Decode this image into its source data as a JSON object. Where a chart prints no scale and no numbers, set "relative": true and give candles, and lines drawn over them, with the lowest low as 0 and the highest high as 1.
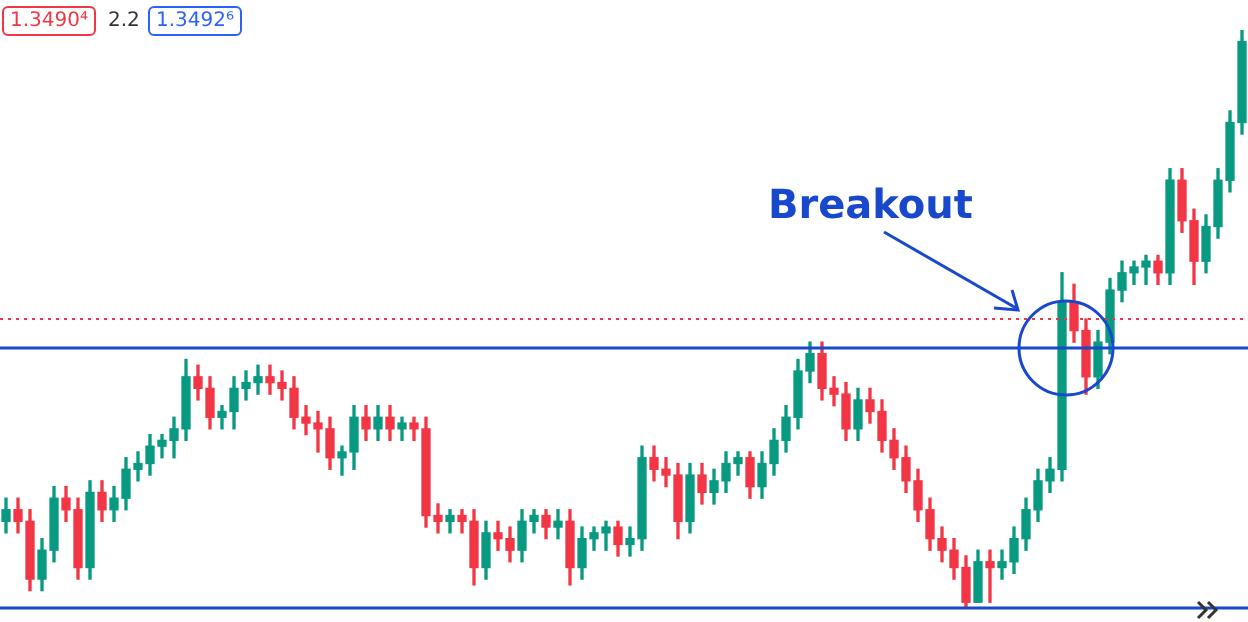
{
  "chart_data": {
    "type": "candlestick",
    "relative": true,
    "categories": [
      null,
      null,
      null,
      null,
      null,
      null,
      null,
      null,
      null,
      null,
      null,
      null,
      null,
      null,
      null,
      null,
      null,
      null,
      null,
      null,
      null,
      null,
      null,
      null,
      null,
      null,
      null,
      null,
      null,
      null,
      null,
      null,
      null,
      null,
      null,
      null,
      null,
      null,
      null,
      null,
      null,
      null,
      null,
      null,
      null,
      null,
      null,
      null,
      null,
      null,
      null,
      null,
      null,
      null,
      null,
      null,
      null,
      null,
      null,
      null,
      null,
      null,
      null,
      null,
      null,
      null,
      null,
      null,
      null,
      null,
      null,
      null,
      null,
      null,
      null,
      null,
      null,
      null,
      null,
      null,
      null,
      null,
      null,
      null,
      null,
      null,
      null,
      null,
      null,
      null,
      null,
      null,
      null,
      null,
      null,
      null,
      null,
      null,
      null,
      null,
      null,
      null,
      null,
      null
    ],
    "ohlc": [
      [
        0.15,
        0.19,
        0.13,
        0.17
      ],
      [
        0.17,
        0.19,
        0.13,
        0.15
      ],
      [
        0.15,
        0.17,
        0.03,
        0.05
      ],
      [
        0.05,
        0.12,
        0.03,
        0.1
      ],
      [
        0.1,
        0.21,
        0.08,
        0.19
      ],
      [
        0.19,
        0.21,
        0.15,
        0.17
      ],
      [
        0.17,
        0.19,
        0.05,
        0.07
      ],
      [
        0.07,
        0.22,
        0.05,
        0.2
      ],
      [
        0.2,
        0.22,
        0.15,
        0.17
      ],
      [
        0.17,
        0.21,
        0.15,
        0.19
      ],
      [
        0.19,
        0.26,
        0.17,
        0.24
      ],
      [
        0.24,
        0.27,
        0.22,
        0.25
      ],
      [
        0.25,
        0.3,
        0.23,
        0.28
      ],
      [
        0.28,
        0.3,
        0.26,
        0.29
      ],
      [
        0.29,
        0.33,
        0.26,
        0.31
      ],
      [
        0.31,
        0.43,
        0.29,
        0.4
      ],
      [
        0.4,
        0.42,
        0.36,
        0.38
      ],
      [
        0.38,
        0.4,
        0.31,
        0.33
      ],
      [
        0.33,
        0.35,
        0.31,
        0.34
      ],
      [
        0.34,
        0.4,
        0.31,
        0.38
      ],
      [
        0.38,
        0.41,
        0.36,
        0.39
      ],
      [
        0.39,
        0.42,
        0.37,
        0.4
      ],
      [
        0.4,
        0.42,
        0.37,
        0.39
      ],
      [
        0.39,
        0.41,
        0.36,
        0.38
      ],
      [
        0.38,
        0.4,
        0.31,
        0.33
      ],
      [
        0.33,
        0.35,
        0.3,
        0.32
      ],
      [
        0.32,
        0.34,
        0.27,
        0.31
      ],
      [
        0.31,
        0.33,
        0.24,
        0.26
      ],
      [
        0.26,
        0.28,
        0.23,
        0.27
      ],
      [
        0.27,
        0.35,
        0.24,
        0.33
      ],
      [
        0.33,
        0.35,
        0.29,
        0.31
      ],
      [
        0.31,
        0.35,
        0.29,
        0.33
      ],
      [
        0.33,
        0.35,
        0.29,
        0.31
      ],
      [
        0.31,
        0.33,
        0.29,
        0.32
      ],
      [
        0.32,
        0.33,
        0.29,
        0.31
      ],
      [
        0.31,
        0.33,
        0.14,
        0.16
      ],
      [
        0.16,
        0.18,
        0.13,
        0.15
      ],
      [
        0.15,
        0.17,
        0.13,
        0.16
      ],
      [
        0.16,
        0.17,
        0.13,
        0.15
      ],
      [
        0.15,
        0.17,
        0.04,
        0.07
      ],
      [
        0.07,
        0.15,
        0.05,
        0.13
      ],
      [
        0.13,
        0.15,
        0.1,
        0.12
      ],
      [
        0.12,
        0.14,
        0.08,
        0.1
      ],
      [
        0.1,
        0.17,
        0.08,
        0.15
      ],
      [
        0.15,
        0.17,
        0.13,
        0.16
      ],
      [
        0.16,
        0.17,
        0.12,
        0.14
      ],
      [
        0.14,
        0.17,
        0.12,
        0.15
      ],
      [
        0.15,
        0.17,
        0.04,
        0.07
      ],
      [
        0.07,
        0.14,
        0.05,
        0.12
      ],
      [
        0.12,
        0.14,
        0.1,
        0.13
      ],
      [
        0.13,
        0.15,
        0.1,
        0.14
      ],
      [
        0.14,
        0.15,
        0.09,
        0.11
      ],
      [
        0.11,
        0.14,
        0.09,
        0.12
      ],
      [
        0.12,
        0.28,
        0.1,
        0.26
      ],
      [
        0.26,
        0.28,
        0.22,
        0.24
      ],
      [
        0.24,
        0.26,
        0.21,
        0.23
      ],
      [
        0.23,
        0.25,
        0.12,
        0.15
      ],
      [
        0.15,
        0.25,
        0.13,
        0.23
      ],
      [
        0.23,
        0.25,
        0.18,
        0.2
      ],
      [
        0.2,
        0.24,
        0.18,
        0.22
      ],
      [
        0.22,
        0.27,
        0.2,
        0.25
      ],
      [
        0.25,
        0.27,
        0.23,
        0.26
      ],
      [
        0.26,
        0.27,
        0.19,
        0.21
      ],
      [
        0.21,
        0.27,
        0.19,
        0.25
      ],
      [
        0.25,
        0.31,
        0.23,
        0.29
      ],
      [
        0.29,
        0.35,
        0.27,
        0.33
      ],
      [
        0.33,
        0.43,
        0.31,
        0.41
      ],
      [
        0.41,
        0.46,
        0.39,
        0.44
      ],
      [
        0.44,
        0.46,
        0.36,
        0.38
      ],
      [
        0.38,
        0.4,
        0.35,
        0.37
      ],
      [
        0.37,
        0.39,
        0.29,
        0.31
      ],
      [
        0.31,
        0.38,
        0.29,
        0.36
      ],
      [
        0.36,
        0.38,
        0.32,
        0.34
      ],
      [
        0.34,
        0.36,
        0.27,
        0.29
      ],
      [
        0.29,
        0.31,
        0.24,
        0.26
      ],
      [
        0.26,
        0.28,
        0.2,
        0.22
      ],
      [
        0.22,
        0.24,
        0.15,
        0.17
      ],
      [
        0.17,
        0.19,
        0.1,
        0.12
      ],
      [
        0.12,
        0.14,
        0.08,
        0.1
      ],
      [
        0.1,
        0.12,
        0.05,
        0.07
      ],
      [
        0.07,
        0.09,
        0.0,
        0.01
      ],
      [
        0.01,
        0.1,
        0.01,
        0.08
      ],
      [
        0.08,
        0.1,
        0.01,
        0.07
      ],
      [
        0.07,
        0.1,
        0.05,
        0.08
      ],
      [
        0.08,
        0.14,
        0.06,
        0.12
      ],
      [
        0.12,
        0.19,
        0.1,
        0.17
      ],
      [
        0.17,
        0.24,
        0.15,
        0.22
      ],
      [
        0.22,
        0.26,
        0.2,
        0.24
      ],
      [
        0.24,
        0.58,
        0.22,
        0.53
      ],
      [
        0.53,
        0.56,
        0.46,
        0.48
      ],
      [
        0.48,
        0.5,
        0.37,
        0.4
      ],
      [
        0.4,
        0.48,
        0.38,
        0.46
      ],
      [
        0.46,
        0.57,
        0.44,
        0.55
      ],
      [
        0.55,
        0.6,
        0.53,
        0.58
      ],
      [
        0.58,
        0.6,
        0.56,
        0.59
      ],
      [
        0.59,
        0.61,
        0.56,
        0.6
      ],
      [
        0.6,
        0.61,
        0.56,
        0.58
      ],
      [
        0.58,
        0.76,
        0.56,
        0.74
      ],
      [
        0.74,
        0.76,
        0.65,
        0.67
      ],
      [
        0.67,
        0.69,
        0.56,
        0.6
      ],
      [
        0.6,
        0.68,
        0.58,
        0.66
      ],
      [
        0.66,
        0.76,
        0.64,
        0.74
      ],
      [
        0.74,
        0.86,
        0.72,
        0.84
      ],
      [
        0.84,
        1.0,
        0.82,
        0.98
      ]
    ],
    "colors": [
      "#089981",
      "#f23645",
      "#f23645",
      "#089981",
      "#089981",
      "#f23645",
      "#f23645",
      "#089981",
      "#f23645",
      "#089981",
      "#089981",
      "#089981",
      "#089981",
      "#089981",
      "#089981",
      "#089981",
      "#f23645",
      "#f23645",
      "#089981",
      "#089981",
      "#089981",
      "#089981",
      "#f23645",
      "#f23645",
      "#f23645",
      "#f23645",
      "#f23645",
      "#f23645",
      "#089981",
      "#089981",
      "#f23645",
      "#089981",
      "#f23645",
      "#089981",
      "#f23645",
      "#f23645",
      "#f23645",
      "#089981",
      "#f23645",
      "#f23645",
      "#089981",
      "#f23645",
      "#f23645",
      "#089981",
      "#089981",
      "#f23645",
      "#089981",
      "#f23645",
      "#089981",
      "#089981",
      "#089981",
      "#f23645",
      "#089981",
      "#089981",
      "#f23645",
      "#f23645",
      "#f23645",
      "#089981",
      "#f23645",
      "#089981",
      "#089981",
      "#089981",
      "#f23645",
      "#089981",
      "#089981",
      "#089981",
      "#089981",
      "#089981",
      "#f23645",
      "#f23645",
      "#f23645",
      "#089981",
      "#f23645",
      "#f23645",
      "#f23645",
      "#f23645",
      "#f23645",
      "#f23645",
      "#f23645",
      "#f23645",
      "#f23645",
      "#089981",
      "#f23645",
      "#089981",
      "#089981",
      "#089981",
      "#089981",
      "#089981",
      "#089981",
      "#f23645",
      "#f23645",
      "#089981",
      "#089981",
      "#089981",
      "#089981",
      "#089981",
      "#f23645",
      "#089981",
      "#f23645",
      "#f23645",
      "#089981",
      "#089981",
      "#089981",
      "#089981"
    ],
    "ref_lines": [
      {
        "axis": "y",
        "value": 0.45,
        "color": "#1848cc"
      },
      {
        "axis": "y",
        "value": 0,
        "color": "#1848cc"
      },
      {
        "axis": "y",
        "value": 0.5,
        "color": "#f23645",
        "line_style": "dotted"
      }
    ],
    "annotations": [
      "1.3490⁴",
      "2.2",
      "1.3492⁶",
      "Breakout"
    ]
  }
}
